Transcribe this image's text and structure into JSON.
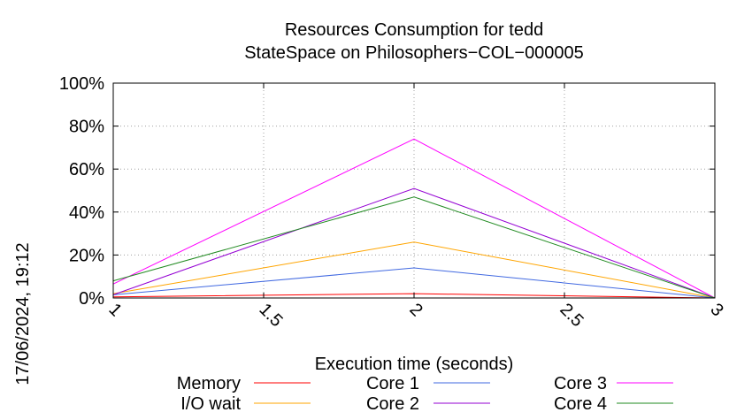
{
  "chart_data": {
    "type": "line",
    "title": "Resources Consumption for tedd",
    "subtitle": "StateSpace on Philosophers−COL−000005",
    "xlabel": "Execution time (seconds)",
    "ylabel": "",
    "side_label": "17/06/2024, 19:12",
    "x": [
      1,
      2,
      3
    ],
    "xlim": [
      1,
      3
    ],
    "ylim": [
      0,
      100
    ],
    "x_ticks": [
      "1",
      "1.5",
      "2",
      "2.5",
      "3"
    ],
    "x_tick_values": [
      1,
      1.5,
      2,
      2.5,
      3
    ],
    "y_ticks": [
      "0%",
      "20%",
      "40%",
      "60%",
      "80%",
      "100%"
    ],
    "y_tick_values": [
      0,
      20,
      40,
      60,
      80,
      100
    ],
    "grid": true,
    "legend_position": "bottom",
    "series": [
      {
        "name": "Memory",
        "color": "#ff0000",
        "values": [
          0.5,
          2,
          0
        ]
      },
      {
        "name": "I/O wait",
        "color": "#ffa500",
        "values": [
          2,
          26,
          0
        ]
      },
      {
        "name": "Core 1",
        "color": "#4169e1",
        "values": [
          1.5,
          14,
          0
        ]
      },
      {
        "name": "Core 2",
        "color": "#9400d3",
        "values": [
          1.5,
          51,
          0
        ]
      },
      {
        "name": "Core 3",
        "color": "#ff00ff",
        "values": [
          6.5,
          74,
          0
        ]
      },
      {
        "name": "Core 4",
        "color": "#228b22",
        "values": [
          8,
          47,
          0
        ]
      }
    ]
  }
}
